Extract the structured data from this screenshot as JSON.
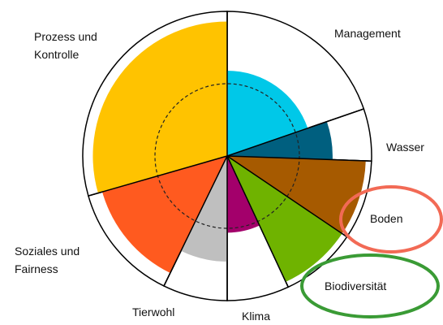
{
  "chart_data": {
    "type": "polar_area",
    "categories": [
      "Management",
      "Wasser",
      "Boden",
      "Biodiversität",
      "Klima",
      "Tierwohl",
      "Soziales und Fairness",
      "Prozess und Kontrolle"
    ],
    "values": [
      59,
      73,
      96,
      96,
      53,
      73,
      90,
      93
    ],
    "angles": [
      71,
      21,
      32,
      31,
      25,
      26,
      48,
      106
    ],
    "colors": [
      "#00c8e8",
      "#005f7f",
      "#a65a00",
      "#6fb300",
      "#a3006b",
      "#bfbfbf",
      "#ff5a1f",
      "#ffc300"
    ],
    "ylim": [
      0,
      100
    ],
    "reference": 50
  }
}
